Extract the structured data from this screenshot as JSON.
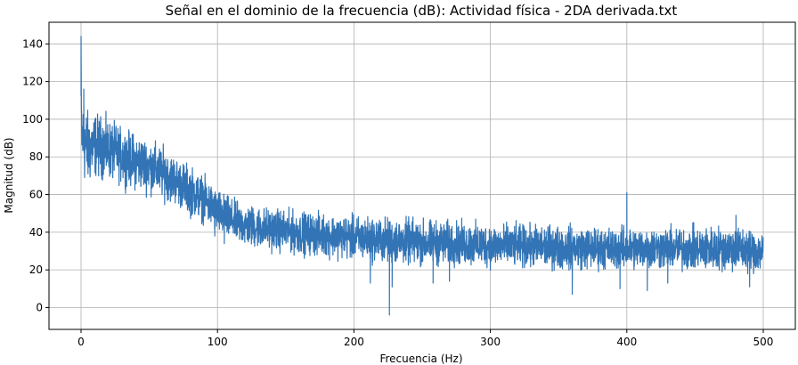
{
  "chart_data": {
    "type": "line",
    "title": "Señal en el dominio de la frecuencia (dB): Actividad física - 2DA derivada.txt",
    "xlabel": "Frecuencia (Hz)",
    "ylabel": "Magnitud (dB)",
    "xlim": [
      -23.5,
      523.5
    ],
    "ylim": [
      -11.6,
      151.5
    ],
    "xticks": [
      0,
      100,
      200,
      300,
      400,
      500
    ],
    "yticks": [
      0,
      20,
      40,
      60,
      80,
      100,
      120,
      140
    ],
    "grid": true,
    "series": [
      {
        "color": "#3274b5",
        "envelope_x": [
          0,
          0.5,
          2,
          5,
          10,
          20,
          30,
          40,
          50,
          60,
          70,
          80,
          90,
          100,
          110,
          120,
          140,
          160,
          180,
          200,
          225,
          250,
          275,
          300,
          325,
          350,
          375,
          400,
          425,
          450,
          475,
          500
        ],
        "upper": [
          144,
          112,
          115,
          108,
          107,
          103,
          98,
          95,
          92,
          88,
          82,
          78,
          72,
          65,
          60,
          57,
          55,
          53,
          52,
          51,
          50,
          49,
          48,
          47,
          46,
          46,
          45,
          45,
          45,
          45,
          46,
          44
        ],
        "lower": [
          76,
          70,
          62,
          60,
          66,
          65,
          63,
          60,
          58,
          55,
          52,
          46,
          43,
          36,
          33,
          30,
          28,
          26,
          25,
          23,
          21,
          20,
          20,
          19,
          19,
          18,
          18,
          18,
          18,
          17,
          17,
          16
        ],
        "peaks": [
          {
            "x": 0,
            "y": 144
          },
          {
            "x": 2,
            "y": 116
          },
          {
            "x": 400,
            "y": 61
          },
          {
            "x": 480,
            "y": 49
          }
        ],
        "dips": [
          {
            "x": 226,
            "y": -4
          },
          {
            "x": 228,
            "y": 11
          },
          {
            "x": 212,
            "y": 13
          },
          {
            "x": 270,
            "y": 14
          },
          {
            "x": 258,
            "y": 13
          },
          {
            "x": 360,
            "y": 7
          },
          {
            "x": 395,
            "y": 10
          },
          {
            "x": 415,
            "y": 9
          },
          {
            "x": 430,
            "y": 13
          },
          {
            "x": 490,
            "y": 11
          },
          {
            "x": 98,
            "y": 38
          },
          {
            "x": 105,
            "y": 34
          }
        ]
      }
    ]
  }
}
